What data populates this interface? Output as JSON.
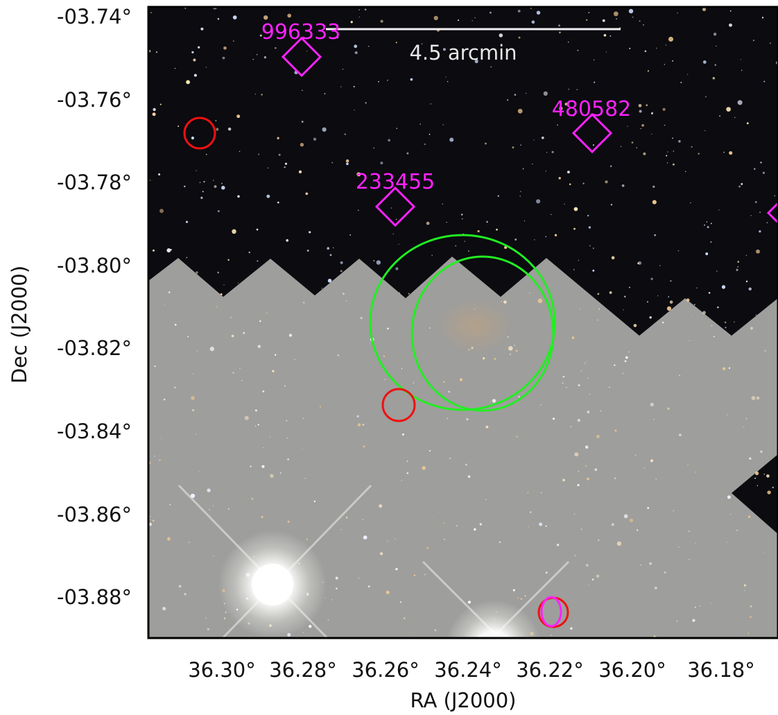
{
  "plot": {
    "x_axis_label": "RA (J2000)",
    "y_axis_label": "Dec (J2000)",
    "x_ticks": [
      "36.30°",
      "36.28°",
      "36.26°",
      "36.24°",
      "36.22°",
      "36.20°",
      "36.18°"
    ],
    "y_ticks": [
      "-03.74°",
      "-03.76°",
      "-03.78°",
      "-03.80°",
      "-03.82°",
      "-03.84°",
      "-03.86°",
      "-03.88°"
    ]
  },
  "scale_bar": {
    "label": "4.5 arcmin",
    "color": "#f0f0f0"
  },
  "sources": [
    {
      "id": "996333",
      "color": "#ff22ff",
      "marker": "diamond"
    },
    {
      "id": "480582",
      "color": "#ff22ff",
      "marker": "diamond"
    },
    {
      "id": "233455",
      "color": "#ff22ff",
      "marker": "diamond"
    }
  ],
  "colors": {
    "sky": "#0b0b10",
    "masked_region": "#9e9e9c",
    "cluster_ellipses": "#22ee22",
    "red_circles": "#ee1111",
    "magenta_markers": "#ff22ff"
  }
}
